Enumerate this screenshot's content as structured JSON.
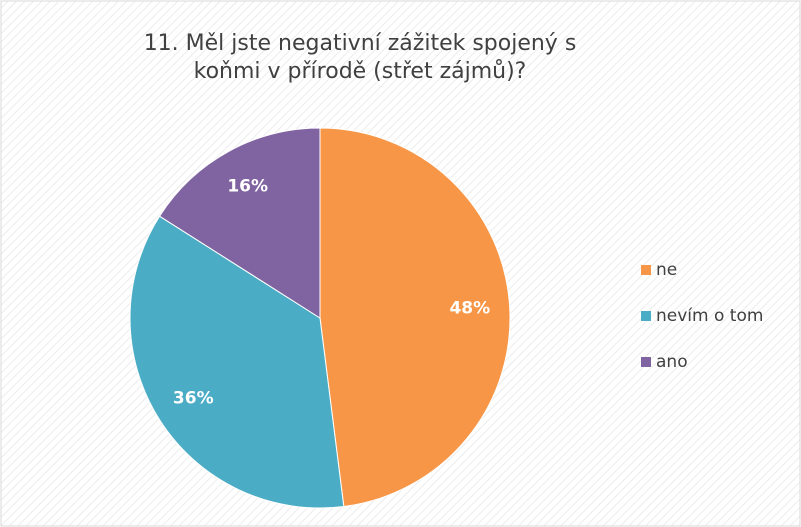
{
  "chart_data": {
    "type": "pie",
    "title": "11. Měl jste negativní zážitek spojený s koňmi v přírodě (střet zájmů)?",
    "categories": [
      "ne",
      "nevím o tom",
      "ano"
    ],
    "values": [
      48,
      36,
      16
    ],
    "value_labels": [
      "48%",
      "36%",
      "16%"
    ],
    "colors": [
      "#f79646",
      "#4bacc6",
      "#8064a2"
    ],
    "legend": "right"
  }
}
